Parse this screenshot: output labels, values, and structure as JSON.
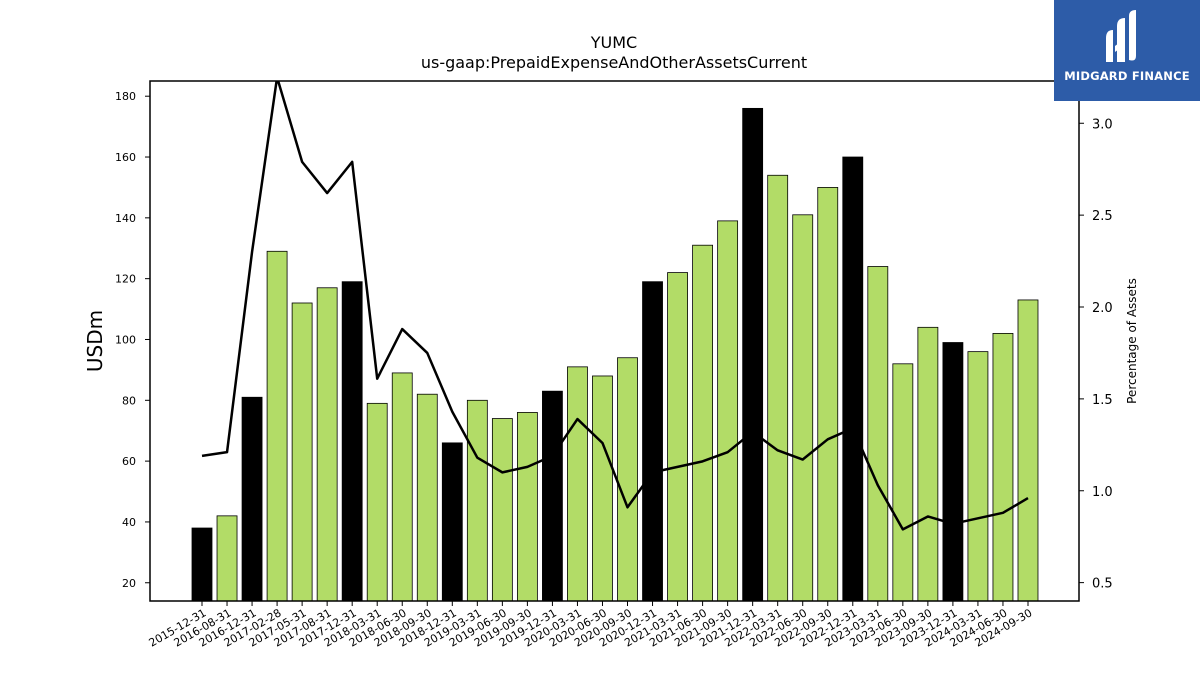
{
  "brand": {
    "name": "MIDGARD FINANCE",
    "bg_color": "#2d5ca8"
  },
  "chart_data": {
    "type": "bar",
    "title": "YUMC",
    "subtitle": "us-gaap:PrepaidExpenseAndOtherAssetsCurrent",
    "ylabel": "USDm",
    "y2label": "Percentage of Assets",
    "ylim": [
      14,
      185
    ],
    "y2lim": [
      0.4,
      3.23
    ],
    "yticks": [
      20,
      40,
      60,
      80,
      100,
      120,
      140,
      160,
      180
    ],
    "y2ticks": [
      0.5,
      1.0,
      1.5,
      2.0,
      2.5,
      3.0
    ],
    "y2tick_labels": [
      "0.5",
      "1.0",
      "1.5",
      "2.0",
      "2.5",
      "3.0"
    ],
    "grid": false,
    "colors": {
      "annual": "#000000",
      "quarterly": "#b2dc67",
      "line": "#000000"
    },
    "categories": [
      "2015-12-31",
      "2016-08-31",
      "2016-12-31",
      "2017-02-28",
      "2017-05-31",
      "2017-08-31",
      "2017-12-31",
      "2018-03-31",
      "2018-06-30",
      "2018-09-30",
      "2018-12-31",
      "2019-03-31",
      "2019-06-30",
      "2019-09-30",
      "2019-12-31",
      "2020-03-31",
      "2020-06-30",
      "2020-09-30",
      "2020-12-31",
      "2021-03-31",
      "2021-06-30",
      "2021-09-30",
      "2021-12-31",
      "2022-03-31",
      "2022-06-30",
      "2022-09-30",
      "2022-12-31",
      "2023-03-31",
      "2023-06-30",
      "2023-09-30",
      "2023-12-31",
      "2024-03-31",
      "2024-06-30",
      "2024-09-30"
    ],
    "series": [
      {
        "axis": "left",
        "kind": "bar",
        "values": [
          38,
          42,
          81,
          129,
          112,
          117,
          119,
          79,
          89,
          82,
          66,
          80,
          74,
          76,
          83,
          91,
          88,
          94,
          119,
          122,
          131,
          139,
          176,
          154,
          141,
          150,
          160,
          124,
          92,
          104,
          99,
          96,
          102,
          113
        ],
        "annual": [
          true,
          false,
          true,
          false,
          false,
          false,
          true,
          false,
          false,
          false,
          true,
          false,
          false,
          false,
          true,
          false,
          false,
          false,
          true,
          false,
          false,
          false,
          true,
          false,
          false,
          false,
          true,
          false,
          false,
          false,
          true,
          false,
          false,
          false
        ]
      },
      {
        "axis": "right",
        "kind": "line",
        "values": [
          1.19,
          1.21,
          2.3,
          3.25,
          2.79,
          2.62,
          2.79,
          1.61,
          1.88,
          1.75,
          1.43,
          1.18,
          1.1,
          1.13,
          1.19,
          1.39,
          1.26,
          0.91,
          1.1,
          1.13,
          1.16,
          1.21,
          1.32,
          1.22,
          1.17,
          1.28,
          1.34,
          1.03,
          0.79,
          0.86,
          0.82,
          0.85,
          0.88,
          0.96
        ]
      }
    ]
  }
}
